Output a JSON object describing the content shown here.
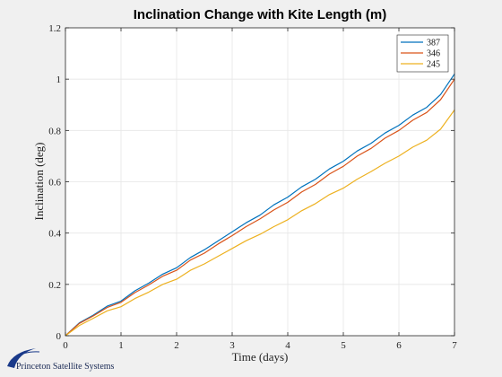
{
  "chart_data": {
    "type": "line",
    "title": "Inclination Change with Kite Length (m)",
    "xlabel": "Time (days)",
    "ylabel": "Inclination (deg)",
    "xlim": [
      0,
      7
    ],
    "ylim": [
      0,
      1.2
    ],
    "xticks": [
      "0",
      "1",
      "2",
      "3",
      "4",
      "5",
      "6",
      "7"
    ],
    "yticks": [
      "0",
      "0.2",
      "0.4",
      "0.6",
      "0.8",
      "1",
      "1.2"
    ],
    "grid": true,
    "legend_position": "top-right",
    "series": [
      {
        "name": "387",
        "color": "#0072BD",
        "x": [
          0,
          0.25,
          0.5,
          0.75,
          1,
          1.25,
          1.5,
          1.75,
          2,
          2.25,
          2.5,
          2.75,
          3,
          3.25,
          3.5,
          3.75,
          4,
          4.25,
          4.5,
          4.75,
          5,
          5.25,
          5.5,
          5.75,
          6,
          6.25,
          6.5,
          6.75,
          7
        ],
        "y": [
          0,
          0.05,
          0.08,
          0.115,
          0.135,
          0.175,
          0.205,
          0.24,
          0.265,
          0.305,
          0.335,
          0.37,
          0.405,
          0.44,
          0.47,
          0.51,
          0.54,
          0.58,
          0.61,
          0.65,
          0.68,
          0.72,
          0.75,
          0.79,
          0.82,
          0.86,
          0.89,
          0.94,
          1.02
        ]
      },
      {
        "name": "346",
        "color": "#D95319",
        "x": [
          0,
          0.25,
          0.5,
          0.75,
          1,
          1.25,
          1.5,
          1.75,
          2,
          2.25,
          2.5,
          2.75,
          3,
          3.25,
          3.5,
          3.75,
          4,
          4.25,
          4.5,
          4.75,
          5,
          5.25,
          5.5,
          5.75,
          6,
          6.25,
          6.5,
          6.75,
          7
        ],
        "y": [
          0,
          0.048,
          0.077,
          0.11,
          0.13,
          0.168,
          0.198,
          0.232,
          0.255,
          0.295,
          0.322,
          0.358,
          0.39,
          0.425,
          0.455,
          0.49,
          0.52,
          0.56,
          0.59,
          0.63,
          0.66,
          0.7,
          0.73,
          0.77,
          0.8,
          0.84,
          0.87,
          0.92,
          1.0
        ]
      },
      {
        "name": "245",
        "color": "#EDB120",
        "x": [
          0,
          0.25,
          0.5,
          0.75,
          1,
          1.25,
          1.5,
          1.75,
          2,
          2.25,
          2.5,
          2.75,
          3,
          3.25,
          3.5,
          3.75,
          4,
          4.25,
          4.5,
          4.75,
          5,
          5.25,
          5.5,
          5.75,
          6,
          6.25,
          6.5,
          6.75,
          7
        ],
        "y": [
          0,
          0.04,
          0.068,
          0.097,
          0.113,
          0.145,
          0.17,
          0.2,
          0.22,
          0.255,
          0.28,
          0.31,
          0.34,
          0.37,
          0.395,
          0.425,
          0.452,
          0.487,
          0.515,
          0.55,
          0.575,
          0.61,
          0.64,
          0.672,
          0.7,
          0.735,
          0.762,
          0.805,
          0.88
        ]
      }
    ]
  },
  "logo": {
    "text": "Princeton Satellite Systems",
    "color": "#1a3a8a"
  }
}
